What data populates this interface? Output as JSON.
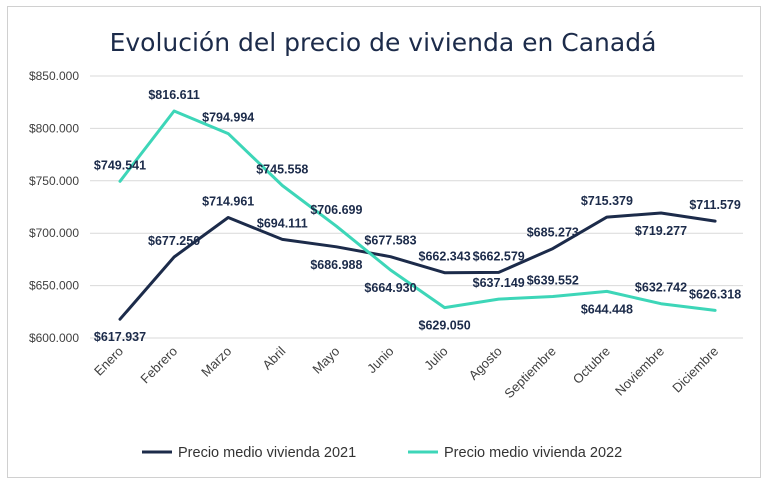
{
  "chart_data": {
    "type": "line",
    "title": "Evolución del precio de vivienda en Canadá",
    "categories": [
      "Enero",
      "Febrero",
      "Marzo",
      "Abril",
      "Mayo",
      "Junio",
      "Julio",
      "Agosto",
      "Septiembre",
      "Octubre",
      "Noviembre",
      "Diciembre"
    ],
    "y_ticks": [
      "$600.000",
      "$650.000",
      "$700.000",
      "$750.000",
      "$800.000",
      "$850.000"
    ],
    "ylim": [
      600000,
      850000
    ],
    "grid": true,
    "legend_position": "bottom",
    "series": [
      {
        "name": "Precio medio vivienda 2021",
        "color": "#1c2b4a",
        "values": [
          617937,
          677250,
          714961,
          694111,
          686988,
          677583,
          662343,
          662579,
          685273,
          715379,
          719277,
          711579
        ],
        "labels": [
          "$617.937",
          "$677.250",
          "$714.961",
          "$694.111",
          "$686.988",
          "$677.583",
          "$662.343",
          "$662.579",
          "$685.273",
          "$715.379",
          "$719.277",
          "$711.579"
        ]
      },
      {
        "name": "Precio medio vivienda 2022",
        "color": "#3dd6b8",
        "values": [
          749541,
          816611,
          794994,
          745558,
          706699,
          664930,
          629050,
          637149,
          639552,
          644448,
          632742,
          626318
        ],
        "labels": [
          "$749.541",
          "$816.611",
          "$794.994",
          "$745.558",
          "$706.699",
          "$664.930",
          "$629.050",
          "$637.149",
          "$639.552",
          "$644.448",
          "$632.742",
          "$626.318"
        ]
      }
    ]
  }
}
